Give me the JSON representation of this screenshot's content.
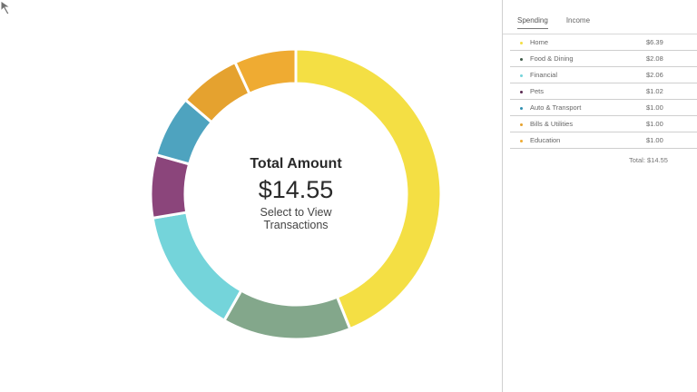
{
  "chart_data": {
    "type": "pie",
    "title": "Total Amount",
    "categories": [
      "Home",
      "Food & Dining",
      "Financial",
      "Pets",
      "Auto & Transport",
      "Bills & Utilities",
      "Education"
    ],
    "values": [
      6.39,
      2.08,
      2.06,
      1.02,
      1.0,
      1.0,
      1.0
    ],
    "colors": [
      "#f4df44",
      "#83a78b",
      "#74d4da",
      "#8b457b",
      "#4ea3bf",
      "#e5a22f",
      "#efab32"
    ]
  },
  "center": {
    "title": "Total Amount",
    "amount": "$14.55",
    "subtitle_line1": "Select to View",
    "subtitle_line2": "Transactions"
  },
  "tabs": [
    {
      "label": "Spending",
      "active": true
    },
    {
      "label": "Income",
      "active": false
    }
  ],
  "items": [
    {
      "label": "Home",
      "amount": "$6.39",
      "color": "#f4df44"
    },
    {
      "label": "Food & Dining",
      "amount": "$2.08",
      "color": "#3d5a48"
    },
    {
      "label": "Financial",
      "amount": "$2.06",
      "color": "#74d4da"
    },
    {
      "label": "Pets",
      "amount": "$1.02",
      "color": "#5b2a52"
    },
    {
      "label": "Auto & Transport",
      "amount": "$1.00",
      "color": "#2f8fb0"
    },
    {
      "label": "Bills & Utilities",
      "amount": "$1.00",
      "color": "#e5a22f"
    },
    {
      "label": "Education",
      "amount": "$1.00",
      "color": "#efab32"
    }
  ],
  "total_label": "Total: $14.55",
  "icons": {
    "cursor": "mouse-pointer-icon"
  }
}
